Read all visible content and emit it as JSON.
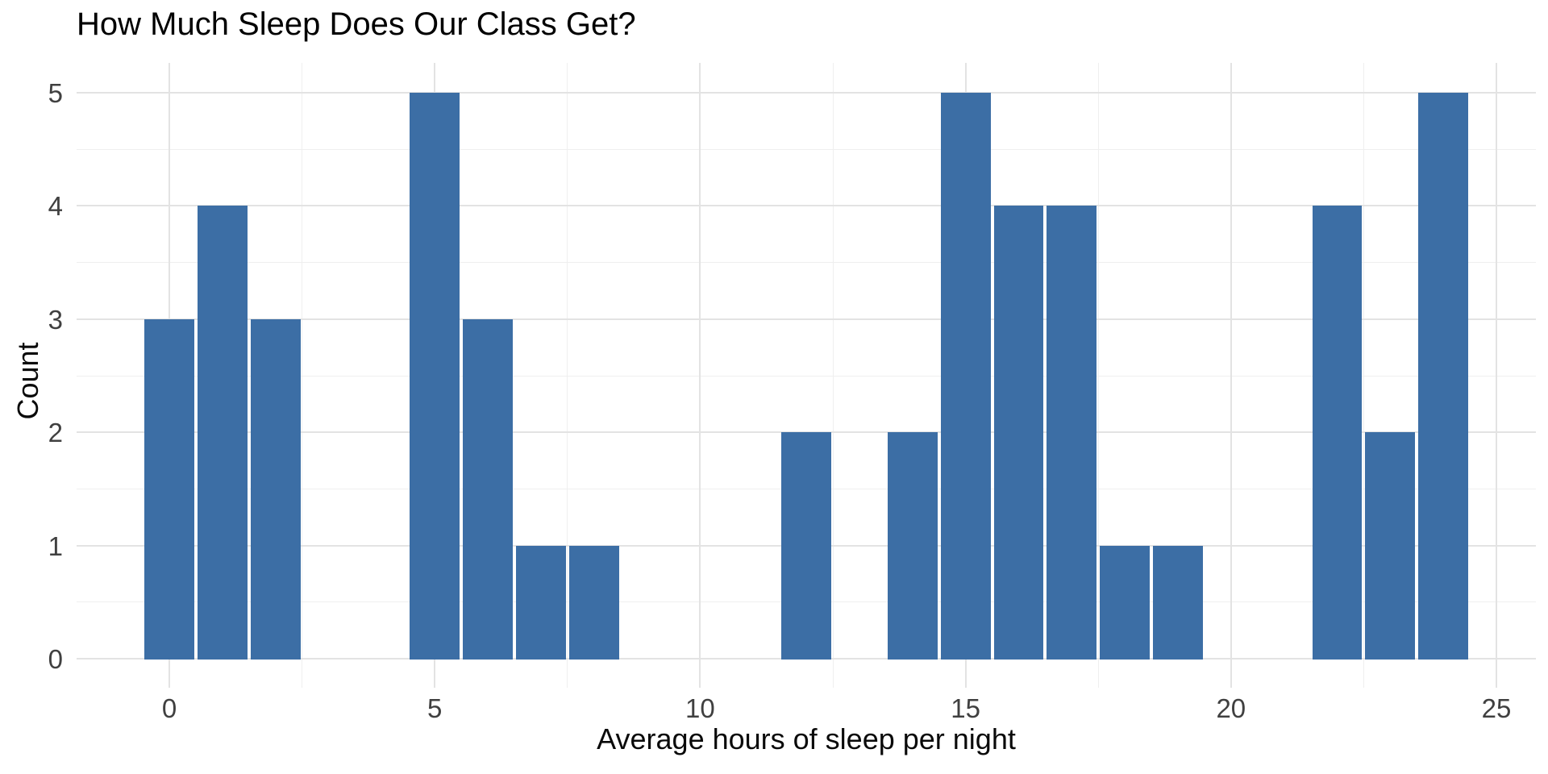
{
  "title": "How Much Sleep Does Our Class Get?",
  "colors": {
    "bar": "#3C6EA5",
    "grid_major": "#e3e3e3",
    "grid_minor": "#efefef",
    "tick_label": "#404040",
    "axis_title": "#0a0a0a",
    "title": "#000000",
    "background": "#ffffff"
  },
  "chart_data": {
    "type": "bar",
    "subtype": "histogram",
    "title": "How Much Sleep Does Our Class Get?",
    "xlabel": "Average hours of sleep per night",
    "ylabel": "Count",
    "x": [
      0,
      1,
      2,
      3,
      4,
      5,
      6,
      7,
      8,
      9,
      10,
      11,
      12,
      13,
      14,
      15,
      16,
      17,
      18,
      19,
      20,
      21,
      22,
      23,
      24
    ],
    "values": [
      3,
      4,
      3,
      0,
      0,
      5,
      3,
      1,
      1,
      0,
      0,
      0,
      2,
      0,
      2,
      5,
      4,
      4,
      1,
      1,
      0,
      0,
      4,
      2,
      5
    ],
    "bin_width": 1,
    "xticks": [
      0,
      5,
      10,
      15,
      20,
      25
    ],
    "yticks": [
      0,
      1,
      2,
      3,
      4,
      5
    ],
    "xlim": [
      -1.75,
      25.75
    ],
    "ylim": [
      -0.25,
      5.25
    ],
    "grid": "major+minor",
    "legend": "none"
  }
}
